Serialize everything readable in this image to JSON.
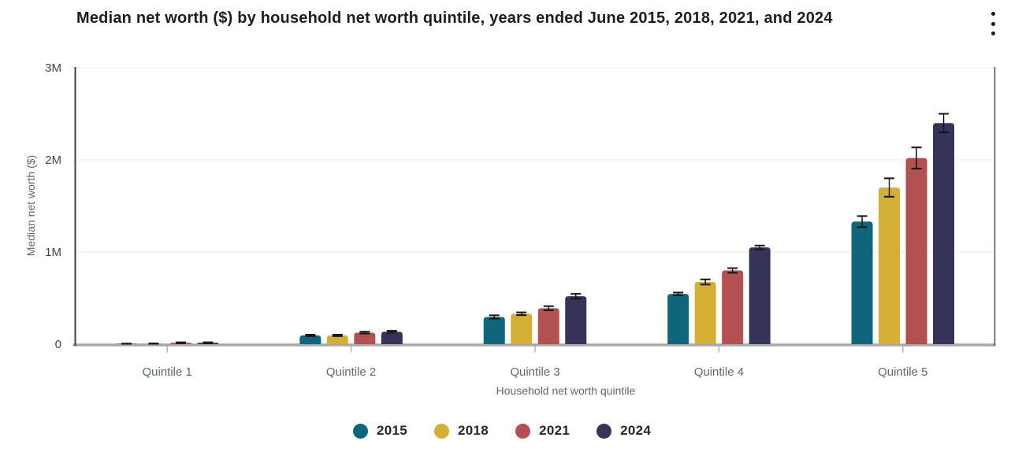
{
  "header": {
    "title": "Median net worth ($) by household net worth quintile, years ended June 2015, 2018, 2021, and 2024",
    "menu_icon": "kebab-menu"
  },
  "colors": {
    "background": "#ffffff",
    "title_text": "#1d1d27",
    "gridline": "#eaeaea",
    "baseline": "#a8a8a8",
    "axis_line_left": "#3f3f44",
    "axis_line_right": "#55555c",
    "tick_mark": "#b4b4b4",
    "y_tick_label": "#44444b",
    "x_tick_label": "#5d6771",
    "axis_title": "#5d6771",
    "error_bar": "#141414",
    "legend_text": "#26262e"
  },
  "chart_data": {
    "type": "bar",
    "title": "Median net worth ($) by household net worth quintile, years ended June 2015, 2018, 2021, and 2024",
    "xlabel": "Household net worth quintile",
    "ylabel": "Median net worth ($)",
    "categories": [
      "Quintile 1",
      "Quintile 2",
      "Quintile 3",
      "Quintile 4",
      "Quintile 5"
    ],
    "series": [
      {
        "name": "2015",
        "color": "#0f6579",
        "values": [
          4000,
          95000,
          295000,
          545000,
          1330000
        ],
        "errors": [
          2000,
          8000,
          18000,
          15000,
          60000
        ]
      },
      {
        "name": "2018",
        "color": "#d4af35",
        "values": [
          6000,
          95000,
          330000,
          675000,
          1700000
        ],
        "errors": [
          2000,
          8000,
          15000,
          28000,
          100000
        ]
      },
      {
        "name": "2021",
        "color": "#b25052",
        "values": [
          15000,
          125000,
          390000,
          800000,
          2020000
        ],
        "errors": [
          5000,
          10000,
          22000,
          25000,
          115000
        ]
      },
      {
        "name": "2024",
        "color": "#363359",
        "values": [
          15000,
          135000,
          520000,
          1050000,
          2400000
        ],
        "errors": [
          5000,
          10000,
          26000,
          20000,
          100000
        ]
      }
    ],
    "ylim": [
      0,
      3000000
    ],
    "yticks": [
      {
        "value": 0,
        "label": "0"
      },
      {
        "value": 1000000,
        "label": "1M"
      },
      {
        "value": 2000000,
        "label": "2M"
      },
      {
        "value": 3000000,
        "label": "3M"
      }
    ],
    "grid": "horizontal",
    "legend_position": "bottom",
    "error_bars": true
  }
}
